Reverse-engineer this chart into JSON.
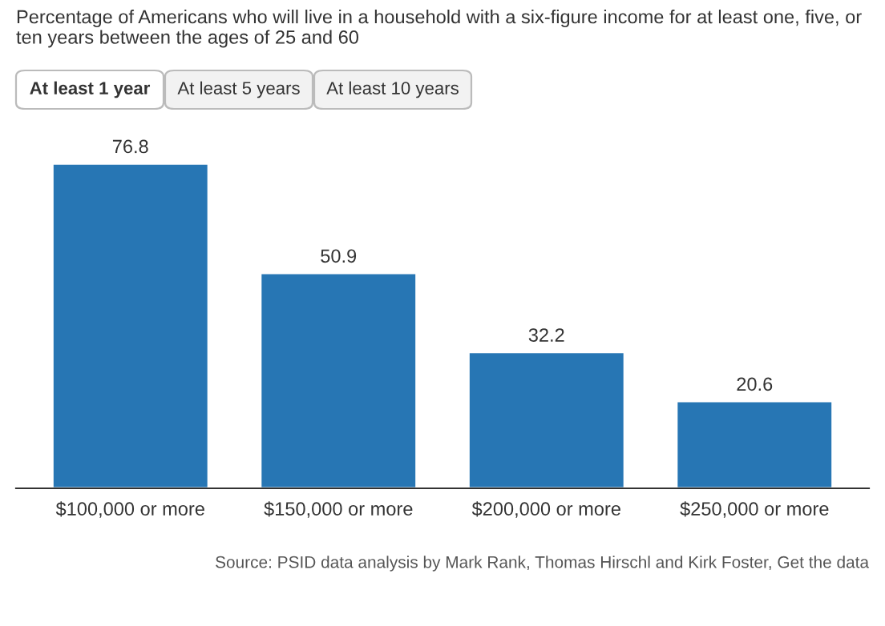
{
  "chart_data": {
    "type": "bar",
    "title": "Percentage of Americans who will live in a household with a six-figure income for at least one, five, or ten years between the ages of 25 and 60",
    "categories": [
      "$100,000 or more",
      "$150,000 or more",
      "$200,000 or more",
      "$250,000 or more"
    ],
    "values": [
      76.8,
      50.9,
      32.2,
      20.6
    ],
    "color": "#2776b4",
    "data_labels": true,
    "annotations": [
      "At least 1 year",
      "At least 5 years",
      "At least 10 years",
      "Source: PSID data analysis by Mark Rank, Thomas Hirschl and Kirk Foster, Get the data"
    ]
  }
}
